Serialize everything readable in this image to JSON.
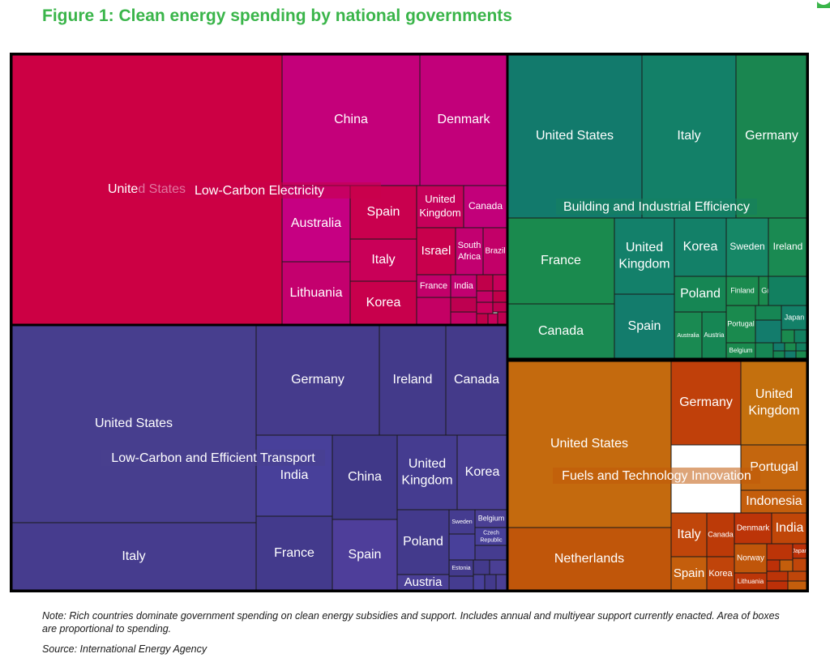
{
  "figure": {
    "title": "Figure 1: Clean energy spending by national governments",
    "note": "Note: Rich countries dominate government spending on clean energy subsidies and support. Includes annual and multiyear support currently enacted. Area of boxes are proportional to spending.",
    "source": "Source: International Energy Agency"
  },
  "chart_data": {
    "type": "treemap",
    "groups": [
      {
        "name": "Low-Carbon Electricity",
        "color": "#c8004a",
        "tiles": [
          {
            "label": "United States",
            "shade": "#cc0044"
          },
          {
            "label": "China",
            "shade": "#c4007a"
          },
          {
            "label": "Denmark",
            "shade": "#c2007a"
          },
          {
            "label": "Australia",
            "shade": "#c60082"
          },
          {
            "label": "Spain",
            "shade": "#c9004e"
          },
          {
            "label": "United Kingdom",
            "shade": "#c6005a"
          },
          {
            "label": "Canada",
            "shade": "#c2007a"
          },
          {
            "label": "Italy",
            "shade": "#c90058"
          },
          {
            "label": "Israel",
            "shade": "#c8004c"
          },
          {
            "label": "South Africa",
            "shade": "#c20070"
          },
          {
            "label": "Brazil",
            "shade": "#c20068"
          },
          {
            "label": "Lithuania",
            "shade": "#c4006e"
          },
          {
            "label": "Korea",
            "shade": "#c8004c"
          },
          {
            "label": "France",
            "shade": "#c2006a"
          },
          {
            "label": "India",
            "shade": "#c10070"
          }
        ]
      },
      {
        "name": "Building and Industrial Efficiency",
        "color": "#158060",
        "tiles": [
          {
            "label": "United States",
            "shade": "#127a6c"
          },
          {
            "label": "Italy",
            "shade": "#138068"
          },
          {
            "label": "Germany",
            "shade": "#1a8650"
          },
          {
            "label": "France",
            "shade": "#1a8a4e"
          },
          {
            "label": "United Kingdom",
            "shade": "#13806a"
          },
          {
            "label": "Korea",
            "shade": "#138068"
          },
          {
            "label": "Sweden",
            "shade": "#168766"
          },
          {
            "label": "Ireland",
            "shade": "#1a8a52"
          },
          {
            "label": "Poland",
            "shade": "#168654"
          },
          {
            "label": "Finland",
            "shade": "#1a8a4e"
          },
          {
            "label": "Greece",
            "shade": "#1a8a4e"
          },
          {
            "label": "Canada",
            "shade": "#1a8a52"
          },
          {
            "label": "Spain",
            "shade": "#137c6c"
          },
          {
            "label": "Portugal",
            "shade": "#1a8a4e"
          },
          {
            "label": "Japan",
            "shade": "#138068"
          },
          {
            "label": "Australia",
            "shade": "#1a8a52"
          },
          {
            "label": "Austria",
            "shade": "#168654"
          },
          {
            "label": "Belgium",
            "shade": "#1a8a4e"
          }
        ]
      },
      {
        "name": "Low-Carbon and Efficient Transport",
        "color": "#48408e",
        "tiles": [
          {
            "label": "United States",
            "shade": "#473e8e"
          },
          {
            "label": "Germany",
            "shade": "#453b8c"
          },
          {
            "label": "Ireland",
            "shade": "#433a8a"
          },
          {
            "label": "Canada",
            "shade": "#443a8a"
          },
          {
            "label": "India",
            "shade": "#48409a"
          },
          {
            "label": "China",
            "shade": "#403888"
          },
          {
            "label": "United Kingdom",
            "shade": "#453c90"
          },
          {
            "label": "Korea",
            "shade": "#4a3f94"
          },
          {
            "label": "Italy",
            "shade": "#463c8e"
          },
          {
            "label": "France",
            "shade": "#433a8c"
          },
          {
            "label": "Spain",
            "shade": "#4e3e9a"
          },
          {
            "label": "Poland",
            "shade": "#433a8c"
          },
          {
            "label": "Belgium",
            "shade": "#4a3f94"
          },
          {
            "label": "Sweden",
            "shade": "#453c90"
          },
          {
            "label": "Czech Republic",
            "shade": "#48409a"
          },
          {
            "label": "Estonia",
            "shade": "#433a8c"
          },
          {
            "label": "Austria",
            "shade": "#4a3f96"
          }
        ]
      },
      {
        "name": "Fuels and Technology Innovation",
        "color": "#c15a0a",
        "tiles": [
          {
            "label": "United States",
            "shade": "#c46a0e"
          },
          {
            "label": "Netherlands",
            "shade": "#c0560a"
          },
          {
            "label": "Germany",
            "shade": "#c0400a"
          },
          {
            "label": "United Kingdom",
            "shade": "#c4700e"
          },
          {
            "label": "Portugal",
            "shade": "#c4660e"
          },
          {
            "label": "Indonesia",
            "shade": "#c45e0c"
          },
          {
            "label": "Italy",
            "shade": "#c0460a"
          },
          {
            "label": "Canada",
            "shade": "#bc3a08"
          },
          {
            "label": "Denmark",
            "shade": "#bc3408"
          },
          {
            "label": "India",
            "shade": "#c04608"
          },
          {
            "label": "Spain",
            "shade": "#c45e0c"
          },
          {
            "label": "Korea",
            "shade": "#c0440a"
          },
          {
            "label": "Norway",
            "shade": "#c0560a"
          },
          {
            "label": "Japan",
            "shade": "#bc3008"
          },
          {
            "label": "Lithuania",
            "shade": "#bc3608"
          }
        ]
      }
    ]
  }
}
